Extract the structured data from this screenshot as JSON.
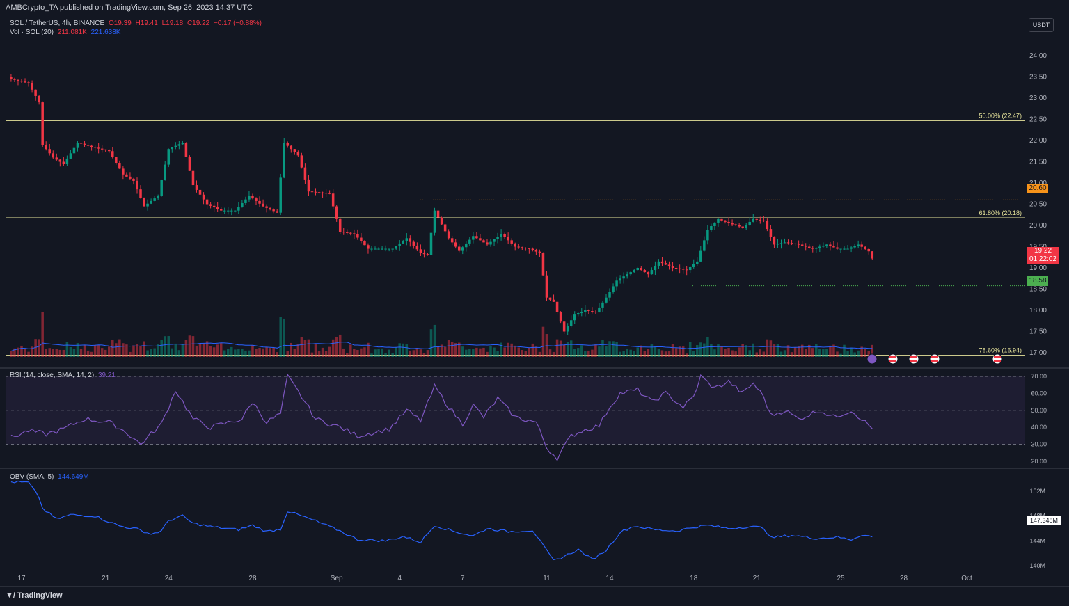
{
  "header": {
    "published": "AMBCrypto_TA published on TradingView.com, Sep 26, 2023 14:37 UTC"
  },
  "legend_main": {
    "symbol": "SOL / TetherUS, 4h, BINANCE",
    "o": "O19.39",
    "h": "H19.41",
    "l": "L19.18",
    "c": "C19.22",
    "chg": "−0.17 (−0.88%)"
  },
  "legend_vol": {
    "label": "Vol · SOL (20)",
    "v1": "211.081K",
    "v2": "221.638K"
  },
  "legend_rsi": {
    "label": "RSI (14, close, SMA, 14, 2)",
    "value": "39.21"
  },
  "legend_obv": {
    "label": "OBV (SMA, 5)",
    "value": "144.649M"
  },
  "currency": "USDT",
  "price_tags": {
    "last": "19.22",
    "countdown": "01:22:02",
    "resistance": "20.60",
    "support": "18.58",
    "obv_level": "147.348M"
  },
  "fib_labels": [
    "50.00% (22.47)",
    "61.80% (20.18)",
    "78.60% (16.94)"
  ],
  "footer": {
    "brand": "TradingView"
  },
  "colors": {
    "bg": "#131722",
    "up": "#089981",
    "down": "#f23645",
    "fib": "#e7e49b",
    "rsi": "#7e57c2",
    "obv": "#2962ff",
    "orange": "#f7931a",
    "green": "#4caf50"
  },
  "chart_data": [
    {
      "type": "candlestick",
      "title": "SOL / TetherUS, 4h, BINANCE",
      "x_ticks": [
        "17",
        "21",
        "24",
        "28",
        "Sep",
        "4",
        "7",
        "11",
        "14",
        "18",
        "21",
        "25",
        "28",
        "Oct"
      ],
      "y_ticks": [
        "24.00",
        "23.50",
        "23.00",
        "22.50",
        "22.00",
        "21.50",
        "21.00",
        "20.50",
        "20.00",
        "19.50",
        "19.00",
        "18.50",
        "18.00",
        "17.50",
        "17.00"
      ],
      "ylim": [
        16.8,
        24.1
      ],
      "anchor_closes": [
        [
          "Aug 16 12:00",
          23.45
        ],
        [
          "Aug 17 08:00",
          23.35
        ],
        [
          "Aug 17 20:00",
          22.9
        ],
        [
          "Aug 18 00:00",
          21.9
        ],
        [
          "Aug 18 12:00",
          21.6
        ],
        [
          "Aug 19 00:00",
          21.45
        ],
        [
          "Aug 19 16:00",
          21.95
        ],
        [
          "Aug 20 08:00",
          21.85
        ],
        [
          "Aug 21 04:00",
          21.75
        ],
        [
          "Aug 21 20:00",
          21.2
        ],
        [
          "Aug 22 08:00",
          21.05
        ],
        [
          "Aug 22 20:00",
          20.45
        ],
        [
          "Aug 23 12:00",
          20.7
        ],
        [
          "Aug 24 00:00",
          21.8
        ],
        [
          "Aug 24 16:00",
          21.95
        ],
        [
          "Aug 25 04:00",
          20.95
        ],
        [
          "Aug 25 20:00",
          20.5
        ],
        [
          "Aug 26 12:00",
          20.35
        ],
        [
          "Aug 27 04:00",
          20.35
        ],
        [
          "Aug 27 20:00",
          20.7
        ],
        [
          "Aug 28 12:00",
          20.45
        ],
        [
          "Aug 29 04:00",
          20.3
        ],
        [
          "Aug 29 12:00",
          21.95
        ],
        [
          "Aug 30 04:00",
          21.65
        ],
        [
          "Aug 30 16:00",
          20.8
        ],
        [
          "Aug 31 16:00",
          20.75
        ],
        [
          "Sep 1 04:00",
          19.85
        ],
        [
          "Sep 1 20:00",
          19.8
        ],
        [
          "Sep 2 12:00",
          19.45
        ],
        [
          "Sep 3 16:00",
          19.45
        ],
        [
          "Sep 4 08:00",
          19.7
        ],
        [
          "Sep 5 00:00",
          19.35
        ],
        [
          "Sep 5 08:00",
          19.3
        ],
        [
          "Sep 5 16:00",
          20.35
        ],
        [
          "Sep 6 08:00",
          19.7
        ],
        [
          "Sep 6 20:00",
          19.4
        ],
        [
          "Sep 7 12:00",
          19.75
        ],
        [
          "Sep 8 04:00",
          19.55
        ],
        [
          "Sep 8 20:00",
          19.8
        ],
        [
          "Sep 9 12:00",
          19.5
        ],
        [
          "Sep 10 04:00",
          19.45
        ],
        [
          "Sep 10 16:00",
          19.35
        ],
        [
          "Sep 11 00:00",
          18.3
        ],
        [
          "Sep 11 08:00",
          18.2
        ],
        [
          "Sep 11 20:00",
          17.5
        ],
        [
          "Sep 12 08:00",
          17.9
        ],
        [
          "Sep 12 20:00",
          18.0
        ],
        [
          "Sep 13 08:00",
          17.95
        ],
        [
          "Sep 13 20:00",
          18.3
        ],
        [
          "Sep 14 08:00",
          18.7
        ],
        [
          "Sep 14 20:00",
          18.85
        ],
        [
          "Sep 15 08:00",
          19.0
        ],
        [
          "Sep 15 20:00",
          18.85
        ],
        [
          "Sep 16 08:00",
          19.15
        ],
        [
          "Sep 17 00:00",
          19.0
        ],
        [
          "Sep 17 16:00",
          18.95
        ],
        [
          "Sep 18 04:00",
          19.15
        ],
        [
          "Sep 18 16:00",
          19.9
        ],
        [
          "Sep 19 04:00",
          20.15
        ],
        [
          "Sep 19 16:00",
          20.05
        ],
        [
          "Sep 20 08:00",
          19.95
        ],
        [
          "Sep 20 20:00",
          20.15
        ],
        [
          "Sep 21 08:00",
          20.1
        ],
        [
          "Sep 21 20:00",
          19.55
        ],
        [
          "Sep 22 08:00",
          19.6
        ],
        [
          "Sep 23 00:00",
          19.55
        ],
        [
          "Sep 23 16:00",
          19.45
        ],
        [
          "Sep 24 08:00",
          19.55
        ],
        [
          "Sep 24 20:00",
          19.45
        ],
        [
          "Sep 25 08:00",
          19.45
        ],
        [
          "Sep 25 20:00",
          19.55
        ],
        [
          "Sep 26 08:00",
          19.39
        ],
        [
          "Sep 26 12:00",
          19.22
        ]
      ],
      "last_candle": {
        "open": 19.39,
        "high": 19.41,
        "low": 19.18,
        "close": 19.22
      },
      "levels": [
        {
          "label": "50.00% (22.47)",
          "value": 22.47
        },
        {
          "label": "61.80% (20.18)",
          "value": 20.18
        },
        {
          "label": "78.60% (16.94)",
          "value": 16.94
        },
        {
          "label": "resistance",
          "value": 20.6
        },
        {
          "label": "support",
          "value": 18.58
        }
      ]
    },
    {
      "type": "line",
      "title": "RSI (14, close, SMA, 14, 2)",
      "y_ticks": [
        "70.00",
        "60.00",
        "50.00",
        "40.00",
        "30.00",
        "20.00"
      ],
      "ylim": [
        18,
        72
      ],
      "band": [
        30,
        70
      ],
      "last": 39.21,
      "anchor_values": [
        [
          "Aug 16 12:00",
          34
        ],
        [
          "Aug 17 08:00",
          38
        ],
        [
          "Aug 18 04:00",
          36
        ],
        [
          "Aug 19 00:00",
          39
        ],
        [
          "Aug 20 00:00",
          45
        ],
        [
          "Aug 21 04:00",
          43
        ],
        [
          "Aug 22 00:00",
          37
        ],
        [
          "Aug 22 16:00",
          30
        ],
        [
          "Aug 23 16:00",
          42
        ],
        [
          "Aug 24 08:00",
          62
        ],
        [
          "Aug 25 04:00",
          45
        ],
        [
          "Aug 26 00:00",
          40
        ],
        [
          "Aug 27 12:00",
          45
        ],
        [
          "Aug 28 00:00",
          55
        ],
        [
          "Aug 28 16:00",
          43
        ],
        [
          "Aug 29 08:00",
          48
        ],
        [
          "Aug 29 16:00",
          70
        ],
        [
          "Aug 30 08:00",
          58
        ],
        [
          "Aug 31 00:00",
          45
        ],
        [
          "Sep 1 04:00",
          40
        ],
        [
          "Sep 2 00:00",
          35
        ],
        [
          "Sep 3 12:00",
          39
        ],
        [
          "Sep 4 08:00",
          50
        ],
        [
          "Sep 5 00:00",
          44
        ],
        [
          "Sep 5 16:00",
          64
        ],
        [
          "Sep 6 08:00",
          52
        ],
        [
          "Sep 7 00:00",
          42
        ],
        [
          "Sep 7 12:00",
          53
        ],
        [
          "Sep 8 00:00",
          46
        ],
        [
          "Sep 8 16:00",
          57
        ],
        [
          "Sep 9 12:00",
          46
        ],
        [
          "Sep 10 12:00",
          43
        ],
        [
          "Sep 11 00:00",
          28
        ],
        [
          "Sep 11 12:00",
          22
        ],
        [
          "Sep 12 04:00",
          35
        ],
        [
          "Sep 12 16:00",
          38
        ],
        [
          "Sep 13 12:00",
          41
        ],
        [
          "Sep 14 00:00",
          52
        ],
        [
          "Sep 14 12:00",
          60
        ],
        [
          "Sep 15 08:00",
          62
        ],
        [
          "Sep 16 00:00",
          55
        ],
        [
          "Sep 16 16:00",
          60
        ],
        [
          "Sep 17 12:00",
          52
        ],
        [
          "Sep 18 00:00",
          58
        ],
        [
          "Sep 18 08:00",
          70
        ],
        [
          "Sep 19 00:00",
          63
        ],
        [
          "Sep 19 16:00",
          67
        ],
        [
          "Sep 20 08:00",
          60
        ],
        [
          "Sep 20 20:00",
          66
        ],
        [
          "Sep 21 08:00",
          58
        ],
        [
          "Sep 21 16:00",
          47
        ],
        [
          "Sep 22 08:00",
          50
        ],
        [
          "Sep 23 00:00",
          45
        ],
        [
          "Sep 24 00:00",
          50
        ],
        [
          "Sep 24 16:00",
          46
        ],
        [
          "Sep 25 12:00",
          50
        ],
        [
          "Sep 26 00:00",
          45
        ],
        [
          "Sep 26 12:00",
          39.21
        ]
      ]
    },
    {
      "type": "line",
      "title": "OBV (SMA, 5)",
      "y_ticks": [
        "152M",
        "148M",
        "144M",
        "140M"
      ],
      "ylim": [
        138.5,
        154.5
      ],
      "level": 147.348,
      "last": 144.649,
      "anchor_values": [
        [
          "Aug 16 12:00",
          153.5
        ],
        [
          "Aug 17 08:00",
          153.4
        ],
        [
          "Aug 17 20:00",
          151
        ],
        [
          "Aug 18 00:00",
          149.2
        ],
        [
          "Aug 18 16:00",
          147.5
        ],
        [
          "Aug 19 08:00",
          148.2
        ],
        [
          "Aug 20 12:00",
          148.0
        ],
        [
          "Aug 21 00:00",
          147.3
        ],
        [
          "Aug 21 16:00",
          146.4
        ],
        [
          "Aug 22 12:00",
          145.9
        ],
        [
          "Aug 23 04:00",
          145.1
        ],
        [
          "Aug 23 16:00",
          145.6
        ],
        [
          "Aug 24 00:00",
          147.3
        ],
        [
          "Aug 24 16:00",
          148.0
        ],
        [
          "Aug 25 04:00",
          146.8
        ],
        [
          "Aug 26 04:00",
          146.2
        ],
        [
          "Aug 27 08:00",
          145.8
        ],
        [
          "Aug 28 00:00",
          146.5
        ],
        [
          "Aug 28 16:00",
          145.5
        ],
        [
          "Aug 29 08:00",
          145.9
        ],
        [
          "Aug 29 16:00",
          148.8
        ],
        [
          "Aug 30 08:00",
          148.0
        ],
        [
          "Aug 31 00:00",
          147.2
        ],
        [
          "Sep 1 04:00",
          145.6
        ],
        [
          "Sep 2 00:00",
          144.2
        ],
        [
          "Sep 3 08:00",
          144.0
        ],
        [
          "Sep 4 04:00",
          144.7
        ],
        [
          "Sep 5 00:00",
          143.8
        ],
        [
          "Sep 5 16:00",
          146.5
        ],
        [
          "Sep 6 12:00",
          145.6
        ],
        [
          "Sep 7 12:00",
          144.8
        ],
        [
          "Sep 8 04:00",
          146.0
        ],
        [
          "Sep 9 04:00",
          145.5
        ],
        [
          "Sep 10 08:00",
          145.7
        ],
        [
          "Sep 10 20:00",
          143.2
        ],
        [
          "Sep 11 08:00",
          140.8
        ],
        [
          "Sep 11 20:00",
          141.5
        ],
        [
          "Sep 12 12:00",
          142.6
        ],
        [
          "Sep 13 04:00",
          141.0
        ],
        [
          "Sep 13 20:00",
          142.5
        ],
        [
          "Sep 14 12:00",
          145.4
        ],
        [
          "Sep 15 04:00",
          146.4
        ],
        [
          "Sep 16 04:00",
          145.8
        ],
        [
          "Sep 17 04:00",
          145.6
        ],
        [
          "Sep 18 00:00",
          146.2
        ],
        [
          "Sep 18 16:00",
          146.5
        ],
        [
          "Sep 19 16:00",
          146.0
        ],
        [
          "Sep 20 16:00",
          146.3
        ],
        [
          "Sep 21 08:00",
          146.1
        ],
        [
          "Sep 21 16:00",
          144.5
        ],
        [
          "Sep 22 16:00",
          144.9
        ],
        [
          "Sep 23 20:00",
          144.4
        ],
        [
          "Sep 24 20:00",
          144.6
        ],
        [
          "Sep 25 12:00",
          144.2
        ],
        [
          "Sep 26 00:00",
          145.0
        ],
        [
          "Sep 26 12:00",
          144.649
        ]
      ]
    }
  ]
}
